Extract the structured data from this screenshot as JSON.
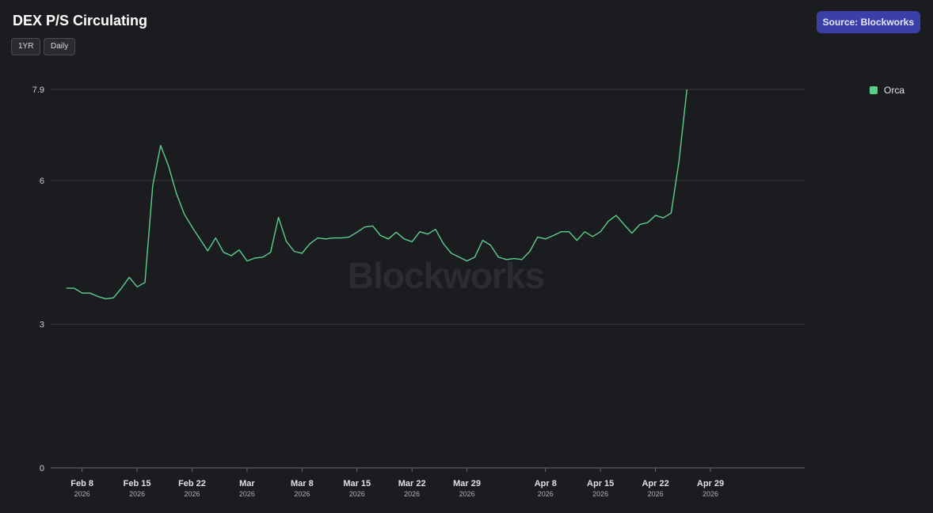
{
  "header": {
    "title": "DEX P/S Circulating",
    "range_label": "1YR",
    "interval_label": "Daily",
    "source_label": "Source: Blockworks"
  },
  "watermark": "Blockworks",
  "chart_data": {
    "type": "line",
    "title": "DEX P/S Circulating",
    "xlabel": "",
    "ylabel": "",
    "ylim": [
      0,
      7.9
    ],
    "yticks": [
      0,
      3,
      6,
      7.9
    ],
    "xlim": [
      "2026-02-04",
      "2026-05-11"
    ],
    "grid": true,
    "legend_position": "top-right",
    "x_ticks": [
      {
        "date": "2026-02-08",
        "label": "Feb 8",
        "sublabel": "2026"
      },
      {
        "date": "2026-02-15",
        "label": "Feb 15",
        "sublabel": "2026"
      },
      {
        "date": "2026-02-22",
        "label": "Feb 22",
        "sublabel": "2026"
      },
      {
        "date": "2026-03-01",
        "label": "Mar",
        "sublabel": "2026"
      },
      {
        "date": "2026-03-08",
        "label": "Mar 8",
        "sublabel": "2026"
      },
      {
        "date": "2026-03-15",
        "label": "Mar 15",
        "sublabel": "2026"
      },
      {
        "date": "2026-03-22",
        "label": "Mar 22",
        "sublabel": "2026"
      },
      {
        "date": "2026-03-29",
        "label": "Mar 29",
        "sublabel": "2026"
      },
      {
        "date": "2026-04-08",
        "label": "Apr 8",
        "sublabel": "2026"
      },
      {
        "date": "2026-04-15",
        "label": "Apr 15",
        "sublabel": "2026"
      },
      {
        "date": "2026-04-22",
        "label": "Apr 22",
        "sublabel": "2026"
      },
      {
        "date": "2026-04-29",
        "label": "Apr 29",
        "sublabel": "2026"
      }
    ],
    "series": [
      {
        "name": "Orca",
        "color": "#5ccf8c",
        "x": [
          "2026-02-06",
          "2026-02-07",
          "2026-02-08",
          "2026-02-09",
          "2026-02-10",
          "2026-02-11",
          "2026-02-12",
          "2026-02-13",
          "2026-02-14",
          "2026-02-15",
          "2026-02-16",
          "2026-02-17",
          "2026-02-18",
          "2026-02-19",
          "2026-02-20",
          "2026-02-21",
          "2026-02-22",
          "2026-02-23",
          "2026-02-24",
          "2026-02-25",
          "2026-02-26",
          "2026-02-27",
          "2026-02-28",
          "2026-03-01",
          "2026-03-02",
          "2026-03-03",
          "2026-03-04",
          "2026-03-05",
          "2026-03-06",
          "2026-03-07",
          "2026-03-08",
          "2026-03-09",
          "2026-03-10",
          "2026-03-11",
          "2026-03-12",
          "2026-03-13",
          "2026-03-14",
          "2026-03-15",
          "2026-03-16",
          "2026-03-17",
          "2026-03-18",
          "2026-03-19",
          "2026-03-20",
          "2026-03-21",
          "2026-03-22",
          "2026-03-23",
          "2026-03-24",
          "2026-03-25",
          "2026-03-26",
          "2026-03-27",
          "2026-03-28",
          "2026-03-29",
          "2026-03-30",
          "2026-03-31",
          "2026-04-01",
          "2026-04-02",
          "2026-04-03",
          "2026-04-04",
          "2026-04-05",
          "2026-04-06",
          "2026-04-07",
          "2026-04-08",
          "2026-04-09",
          "2026-04-10",
          "2026-04-11",
          "2026-04-12",
          "2026-04-13",
          "2026-04-14",
          "2026-04-15",
          "2026-04-16",
          "2026-04-17",
          "2026-04-18",
          "2026-04-19",
          "2026-04-20",
          "2026-04-21",
          "2026-04-22",
          "2026-04-23",
          "2026-04-24",
          "2026-04-25"
        ],
        "values": [
          3.75,
          3.75,
          3.65,
          3.65,
          3.58,
          3.53,
          3.55,
          3.75,
          3.98,
          3.78,
          3.87,
          5.9,
          6.73,
          6.3,
          5.73,
          5.3,
          5.03,
          4.78,
          4.53,
          4.8,
          4.5,
          4.43,
          4.55,
          4.32,
          4.38,
          4.4,
          4.5,
          5.23,
          4.73,
          4.52,
          4.48,
          4.68,
          4.8,
          4.78,
          4.8,
          4.8,
          4.82,
          4.92,
          5.03,
          5.05,
          4.85,
          4.78,
          4.92,
          4.78,
          4.72,
          4.93,
          4.88,
          4.98,
          4.68,
          4.48,
          4.4,
          4.32,
          4.4,
          4.75,
          4.65,
          4.4,
          4.35,
          4.37,
          4.35,
          4.52,
          4.82,
          4.78,
          4.85,
          4.93,
          4.93,
          4.75,
          4.93,
          4.83,
          4.93,
          5.15,
          5.27,
          5.08,
          4.9,
          5.08,
          5.12,
          5.27,
          5.22,
          5.32,
          6.4
        ]
      }
    ],
    "end_point": {
      "x": "2026-04-26",
      "value": 7.9
    }
  }
}
